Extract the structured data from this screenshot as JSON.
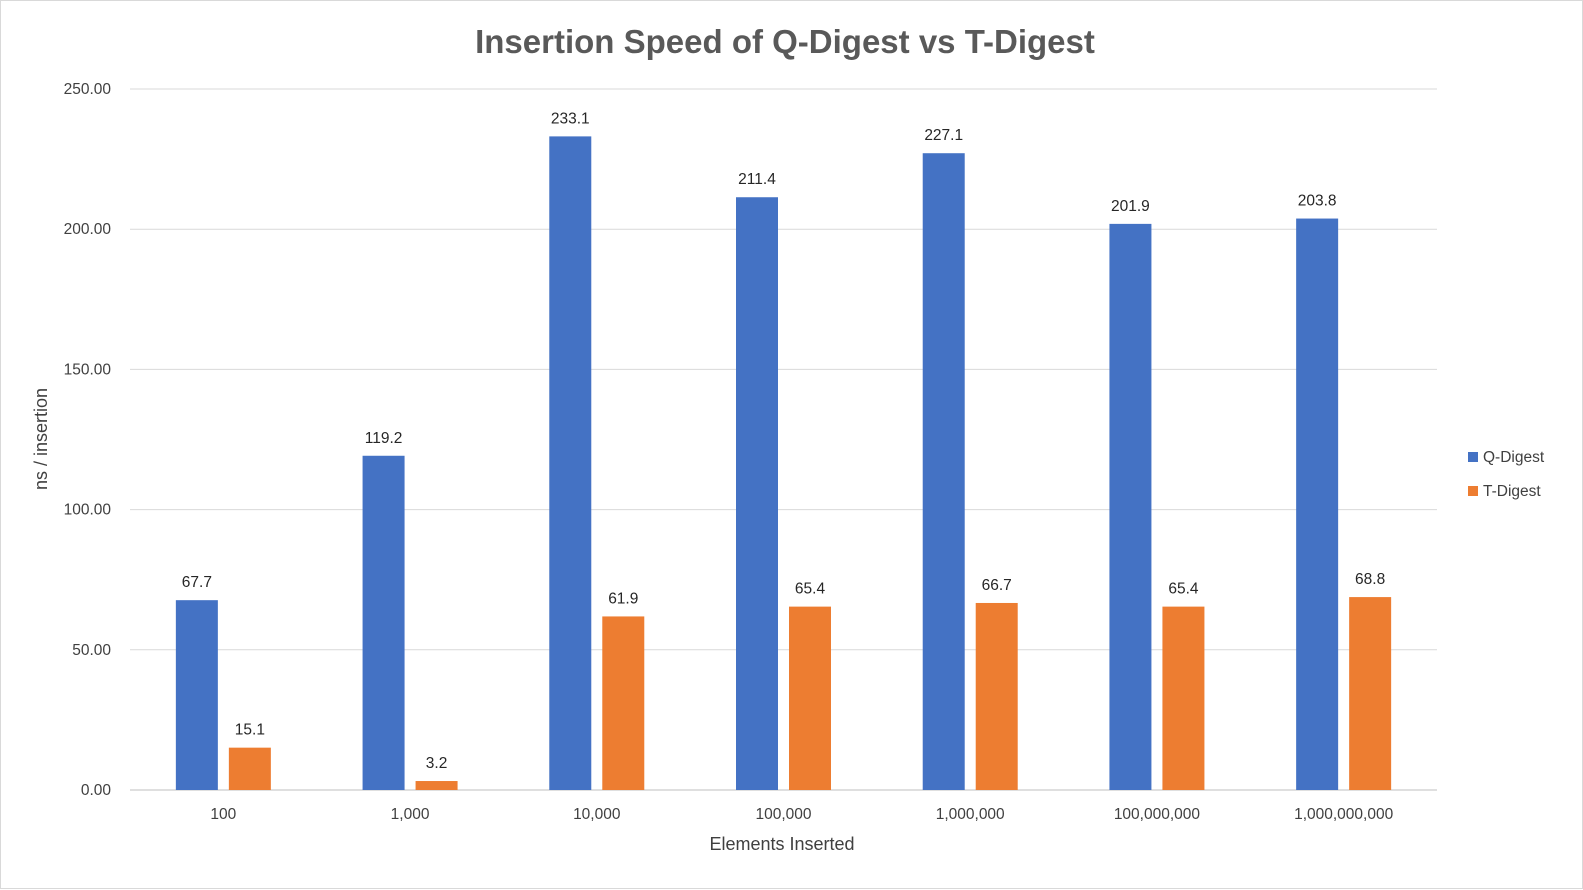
{
  "chart_data": {
    "type": "bar",
    "title": "Insertion Speed of Q-Digest vs T-Digest",
    "xlabel": "Elements Inserted",
    "ylabel": "ns / insertion",
    "categories": [
      "100",
      "1,000",
      "10,000",
      "100,000",
      "1,000,000",
      "100,000,000",
      "1,000,000,000"
    ],
    "series": [
      {
        "name": "Q-Digest",
        "color": "#4472c4",
        "values": [
          67.7,
          119.2,
          233.1,
          211.4,
          227.1,
          201.9,
          203.8
        ],
        "labels": [
          "67.7",
          "119.2",
          "233.1",
          "211.4",
          "227.1",
          "201.9",
          "203.8"
        ]
      },
      {
        "name": "T-Digest",
        "color": "#ed7d31",
        "values": [
          15.1,
          3.2,
          61.9,
          65.4,
          66.7,
          65.4,
          68.8
        ],
        "labels": [
          "15.1",
          "3.2",
          "61.9",
          "65.4",
          "66.7",
          "65.4",
          "68.8"
        ]
      }
    ],
    "ylim": [
      0,
      250
    ],
    "yticks": [
      0,
      50,
      100,
      150,
      200,
      250
    ],
    "ytick_labels": [
      "0.00",
      "50.00",
      "100.00",
      "150.00",
      "200.00",
      "250.00"
    ],
    "grid": true,
    "legend_position": "right"
  }
}
